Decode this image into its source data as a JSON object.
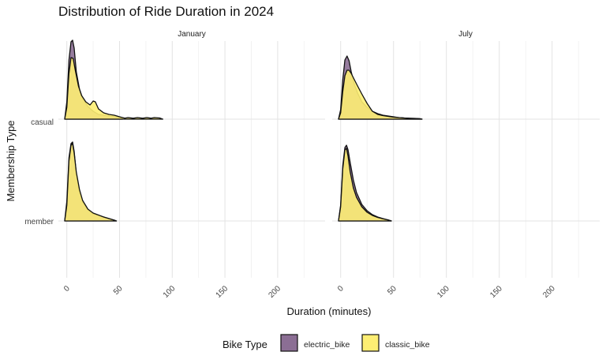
{
  "chart_data": {
    "type": "area",
    "subtype": "ridgeline density (faceted)",
    "title": "Distribution of Ride Duration in 2024",
    "xlabel": "Duration (minutes)",
    "ylabel": "Membership Type",
    "xlim": [
      -8,
      245
    ],
    "x_ticks": [
      0,
      50,
      100,
      150,
      200
    ],
    "x_tick_labels": [
      "0",
      "50",
      "100",
      "150",
      "200"
    ],
    "grid": true,
    "facets": [
      "January",
      "July"
    ],
    "rows": [
      "casual",
      "member"
    ],
    "legend": {
      "title": "Bike Type",
      "placement": "bottom",
      "entries": [
        {
          "label": "electric_bike",
          "color": "#8b6e94"
        },
        {
          "label": "classic_bike",
          "color": "#fdee73"
        }
      ]
    },
    "series": [
      {
        "facet": "January",
        "row": "casual",
        "bike": "electric_bike",
        "x": [
          -2,
          0,
          2,
          4,
          5.5,
          7,
          9,
          12,
          15,
          20,
          25,
          30,
          35,
          40,
          45,
          50,
          53
        ],
        "y": [
          0,
          0.22,
          0.75,
          0.98,
          1.0,
          0.9,
          0.6,
          0.38,
          0.26,
          0.16,
          0.1,
          0.06,
          0.05,
          0.04,
          0.035,
          0.02,
          0
        ]
      },
      {
        "facet": "January",
        "row": "casual",
        "bike": "classic_bike",
        "x": [
          -2,
          0,
          2,
          4,
          6,
          8,
          11,
          14,
          18,
          22,
          25,
          27,
          30,
          35,
          40,
          45,
          50,
          55,
          58,
          63,
          67,
          72,
          76,
          80,
          83,
          88,
          91
        ],
        "y": [
          0,
          0.15,
          0.58,
          0.78,
          0.77,
          0.62,
          0.42,
          0.3,
          0.22,
          0.18,
          0.23,
          0.22,
          0.13,
          0.08,
          0.06,
          0.05,
          0.03,
          0.012,
          0.02,
          0.012,
          0.02,
          0.012,
          0.02,
          0.012,
          0.02,
          0.015,
          0
        ]
      },
      {
        "facet": "January",
        "row": "member",
        "bike": "electric_bike",
        "x": [
          -2,
          0,
          2,
          4,
          5.5,
          7,
          9,
          12,
          15,
          20,
          25,
          30,
          35,
          40,
          45,
          47
        ],
        "y": [
          0,
          0.25,
          0.8,
          0.98,
          1.0,
          0.88,
          0.6,
          0.36,
          0.24,
          0.14,
          0.09,
          0.07,
          0.05,
          0.03,
          0.01,
          0
        ]
      },
      {
        "facet": "January",
        "row": "member",
        "bike": "classic_bike",
        "x": [
          -2,
          0,
          2,
          4,
          5.5,
          7,
          9,
          12,
          15,
          20,
          25,
          30,
          35,
          40,
          45,
          47
        ],
        "y": [
          0,
          0.2,
          0.76,
          0.96,
          0.98,
          0.86,
          0.62,
          0.4,
          0.26,
          0.15,
          0.1,
          0.075,
          0.05,
          0.03,
          0.01,
          0
        ]
      },
      {
        "facet": "July",
        "row": "casual",
        "bike": "electric_bike",
        "x": [
          -2,
          0,
          2,
          4,
          6,
          8,
          10,
          13,
          16,
          20,
          25,
          30,
          35,
          40,
          45,
          50,
          55,
          60,
          65,
          70,
          75,
          77
        ],
        "y": [
          0,
          0.12,
          0.5,
          0.75,
          0.8,
          0.74,
          0.6,
          0.44,
          0.33,
          0.22,
          0.15,
          0.1,
          0.07,
          0.05,
          0.04,
          0.03,
          0.02,
          0.015,
          0.012,
          0.01,
          0.006,
          0
        ]
      },
      {
        "facet": "July",
        "row": "casual",
        "bike": "classic_bike",
        "x": [
          -2,
          0,
          2,
          4,
          6,
          8,
          10,
          13,
          16,
          20,
          25,
          30,
          35,
          40,
          45,
          50,
          55,
          60,
          65,
          70,
          75,
          77
        ],
        "y": [
          0,
          0.08,
          0.35,
          0.55,
          0.62,
          0.62,
          0.58,
          0.5,
          0.42,
          0.32,
          0.2,
          0.1,
          0.06,
          0.045,
          0.035,
          0.025,
          0.02,
          0.015,
          0.01,
          0.008,
          0.005,
          0
        ]
      },
      {
        "facet": "July",
        "row": "member",
        "bike": "electric_bike",
        "x": [
          -2,
          0,
          2,
          4,
          5.5,
          7,
          9,
          12,
          15,
          20,
          25,
          30,
          35,
          40,
          45,
          48
        ],
        "y": [
          0,
          0.2,
          0.7,
          0.93,
          0.96,
          0.9,
          0.74,
          0.52,
          0.36,
          0.21,
          0.13,
          0.08,
          0.05,
          0.03,
          0.012,
          0
        ]
      },
      {
        "facet": "July",
        "row": "member",
        "bike": "classic_bike",
        "x": [
          -2,
          0,
          2,
          4,
          5.5,
          7,
          9,
          12,
          15,
          20,
          25,
          30,
          35,
          40,
          45,
          48
        ],
        "y": [
          0,
          0.18,
          0.66,
          0.9,
          0.92,
          0.82,
          0.62,
          0.42,
          0.3,
          0.18,
          0.11,
          0.07,
          0.045,
          0.028,
          0.012,
          0
        ]
      }
    ]
  }
}
